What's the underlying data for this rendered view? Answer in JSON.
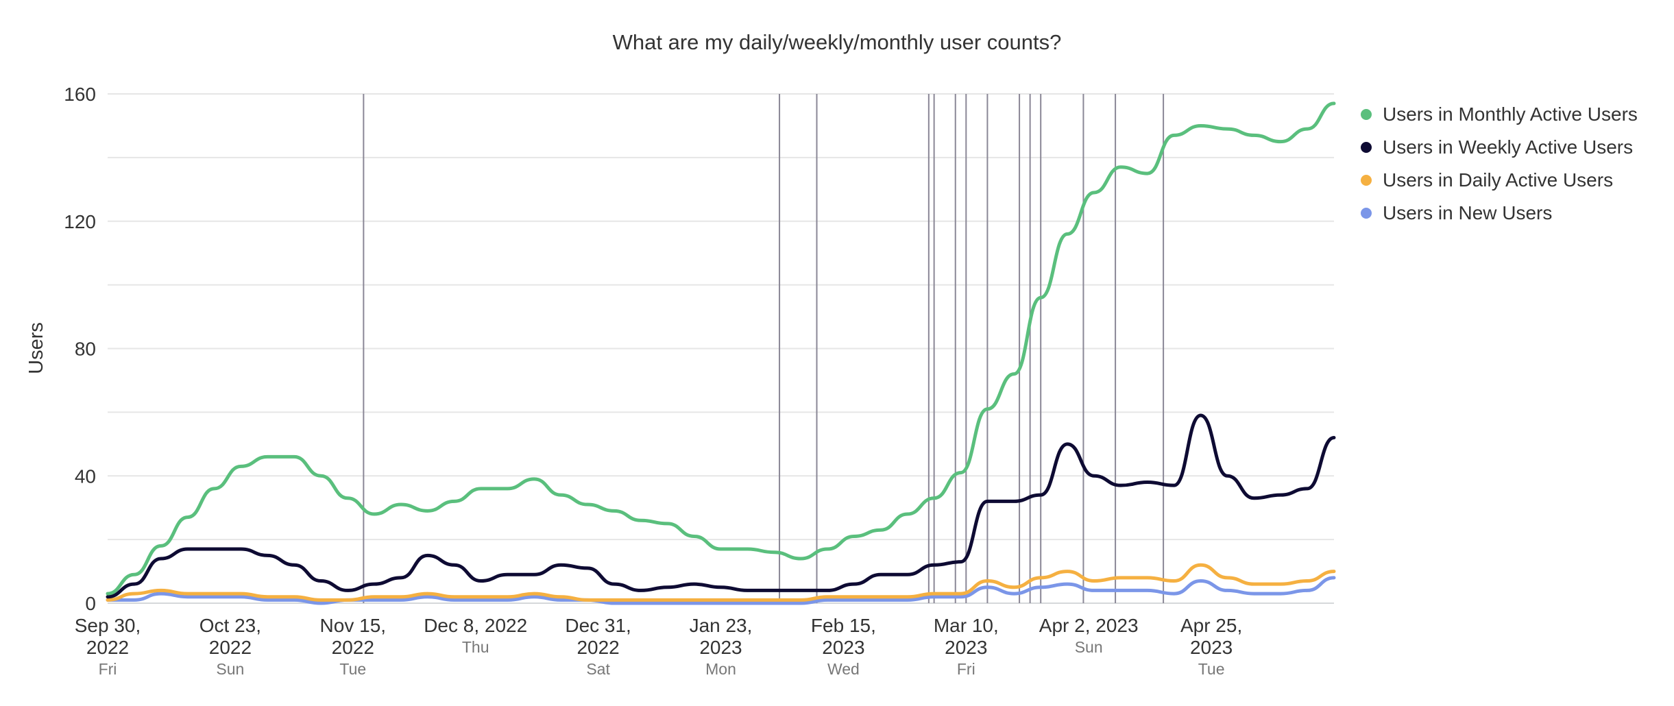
{
  "chart_data": {
    "type": "line",
    "title": "What are my daily/weekly/monthly user counts?",
    "xlabel": "",
    "ylabel": "Users",
    "ylim": [
      0,
      160
    ],
    "yticks": [
      0,
      40,
      80,
      120,
      160
    ],
    "grid": true,
    "legend_position": "top-right",
    "x_start": "2022-09-30",
    "x_step_days": 5,
    "x_end_day": 230,
    "xticks": [
      {
        "day": 0,
        "line1": "Sep 30,",
        "line2": "2022",
        "weekday": "Fri"
      },
      {
        "day": 23,
        "line1": "Oct 23,",
        "line2": "2022",
        "weekday": "Sun"
      },
      {
        "day": 46,
        "line1": "Nov 15,",
        "line2": "2022",
        "weekday": "Tue"
      },
      {
        "day": 69,
        "line1": "Dec 8, 2022",
        "line2": "",
        "weekday": "Thu"
      },
      {
        "day": 92,
        "line1": "Dec 31,",
        "line2": "2022",
        "weekday": "Sat"
      },
      {
        "day": 115,
        "line1": "Jan 23,",
        "line2": "2023",
        "weekday": "Mon"
      },
      {
        "day": 138,
        "line1": "Feb 15,",
        "line2": "2023",
        "weekday": "Wed"
      },
      {
        "day": 161,
        "line1": "Mar 10,",
        "line2": "2023",
        "weekday": "Fri"
      },
      {
        "day": 184,
        "line1": "Apr 2, 2023",
        "line2": "",
        "weekday": "Sun"
      },
      {
        "day": 207,
        "line1": "Apr 25,",
        "line2": "2023",
        "weekday": "Tue"
      }
    ],
    "annotation_days": [
      48,
      126,
      133,
      154,
      155,
      159,
      161,
      165,
      171,
      173,
      175,
      183,
      189,
      198
    ],
    "series": [
      {
        "name": "Users in Monthly Active Users",
        "color": "#5abf7d",
        "values": [
          3,
          9,
          18,
          27,
          36,
          43,
          46,
          46,
          40,
          33,
          28,
          31,
          29,
          32,
          36,
          36,
          39,
          34,
          31,
          29,
          26,
          25,
          21,
          17,
          17,
          16,
          14,
          17,
          21,
          23,
          28,
          33,
          41,
          61,
          72,
          96,
          116,
          129,
          137,
          135,
          147,
          150,
          149,
          147,
          145,
          149,
          157
        ]
      },
      {
        "name": "Users in Weekly Active Users",
        "color": "#0e0b33",
        "values": [
          2,
          6,
          14,
          17,
          17,
          17,
          15,
          12,
          7,
          4,
          6,
          8,
          15,
          12,
          7,
          9,
          9,
          12,
          11,
          6,
          4,
          5,
          6,
          5,
          4,
          4,
          4,
          4,
          6,
          9,
          9,
          12,
          13,
          32,
          32,
          34,
          50,
          40,
          37,
          38,
          37,
          59,
          40,
          33,
          34,
          36,
          52
        ]
      },
      {
        "name": "Users in Daily Active Users",
        "color": "#f5b041",
        "values": [
          1,
          3,
          4,
          3,
          3,
          3,
          2,
          2,
          1,
          1,
          2,
          2,
          3,
          2,
          2,
          2,
          3,
          2,
          1,
          1,
          1,
          1,
          1,
          1,
          1,
          1,
          1,
          2,
          2,
          2,
          2,
          3,
          3,
          7,
          5,
          8,
          10,
          7,
          8,
          8,
          7,
          12,
          8,
          6,
          6,
          7,
          10
        ]
      },
      {
        "name": "Users in New Users",
        "color": "#7b96e8",
        "values": [
          1,
          1,
          3,
          2,
          2,
          2,
          1,
          1,
          0,
          1,
          1,
          1,
          2,
          1,
          1,
          1,
          2,
          1,
          1,
          0,
          0,
          0,
          0,
          0,
          0,
          0,
          0,
          1,
          1,
          1,
          1,
          2,
          2,
          5,
          3,
          5,
          6,
          4,
          4,
          4,
          3,
          7,
          4,
          3,
          3,
          4,
          8
        ]
      }
    ]
  }
}
